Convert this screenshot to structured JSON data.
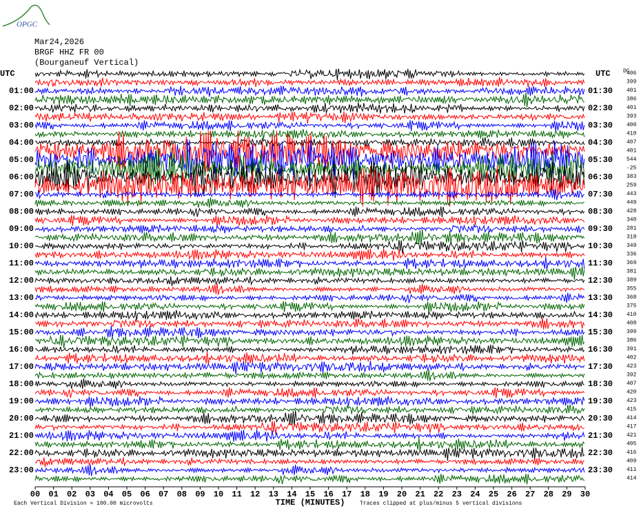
{
  "chart_data": {
    "type": "helicorder",
    "logo": "OPGC",
    "title_lines": [
      "Mar24,2026",
      "BRGF HHZ FR 00",
      "(Bourganeuf Vertical)"
    ],
    "left_axis_title": "UTC",
    "right_axis_title": "UTC",
    "dc_title": "DC",
    "left_labels": [
      "01:00",
      "02:00",
      "03:00",
      "04:00",
      "05:00",
      "06:00",
      "07:00",
      "08:00",
      "09:00",
      "10:00",
      "11:00",
      "12:00",
      "13:00",
      "14:00",
      "15:00",
      "16:00",
      "17:00",
      "18:00",
      "19:00",
      "20:00",
      "21:00",
      "22:00",
      "23:00"
    ],
    "right_labels": [
      "01:30",
      "02:30",
      "03:30",
      "04:30",
      "05:30",
      "06:30",
      "07:30",
      "08:30",
      "09:30",
      "10:30",
      "11:30",
      "12:30",
      "13:30",
      "14:30",
      "15:30",
      "16:30",
      "17:30",
      "18:30",
      "19:30",
      "20:30",
      "21:30",
      "22:30",
      "23:30"
    ],
    "trace_colors": [
      "#000000",
      "#ff0000",
      "#0000ff",
      "#006400"
    ],
    "dc_values": [
      406,
      399,
      401,
      386,
      401,
      393,
      400,
      410,
      407,
      401,
      544,
      -25,
      383,
      259,
      443,
      449,
      428,
      340,
      281,
      318,
      349,
      336,
      369,
      381,
      389,
      355,
      368,
      375,
      410,
      408,
      399,
      386,
      391,
      402,
      423,
      392,
      407,
      420,
      423,
      415,
      414,
      417,
      421,
      405,
      416,
      409,
      411,
      414
    ],
    "xlim": [
      0,
      30
    ],
    "xticks": [
      {
        "value": 0,
        "label": "00"
      },
      {
        "value": 1,
        "label": "01"
      },
      {
        "value": 2,
        "label": "02"
      },
      {
        "value": 3,
        "label": "03"
      },
      {
        "value": 4,
        "label": "04"
      },
      {
        "value": 5,
        "label": "05"
      },
      {
        "value": 6,
        "label": "06"
      },
      {
        "value": 7,
        "label": "07"
      },
      {
        "value": 8,
        "label": "08"
      },
      {
        "value": 9,
        "label": "09"
      },
      10,
      11,
      12,
      13,
      14,
      15,
      16,
      17,
      18,
      19,
      20,
      21,
      22,
      23,
      24,
      25,
      26,
      27,
      28,
      29,
      30
    ],
    "xlabel": "TIME (MINUTES)",
    "scale_note": "Each Vertical Division =  100.00 microvolts",
    "clip_note": "Traces clipped at plus/minus 5 vertical divisions"
  }
}
